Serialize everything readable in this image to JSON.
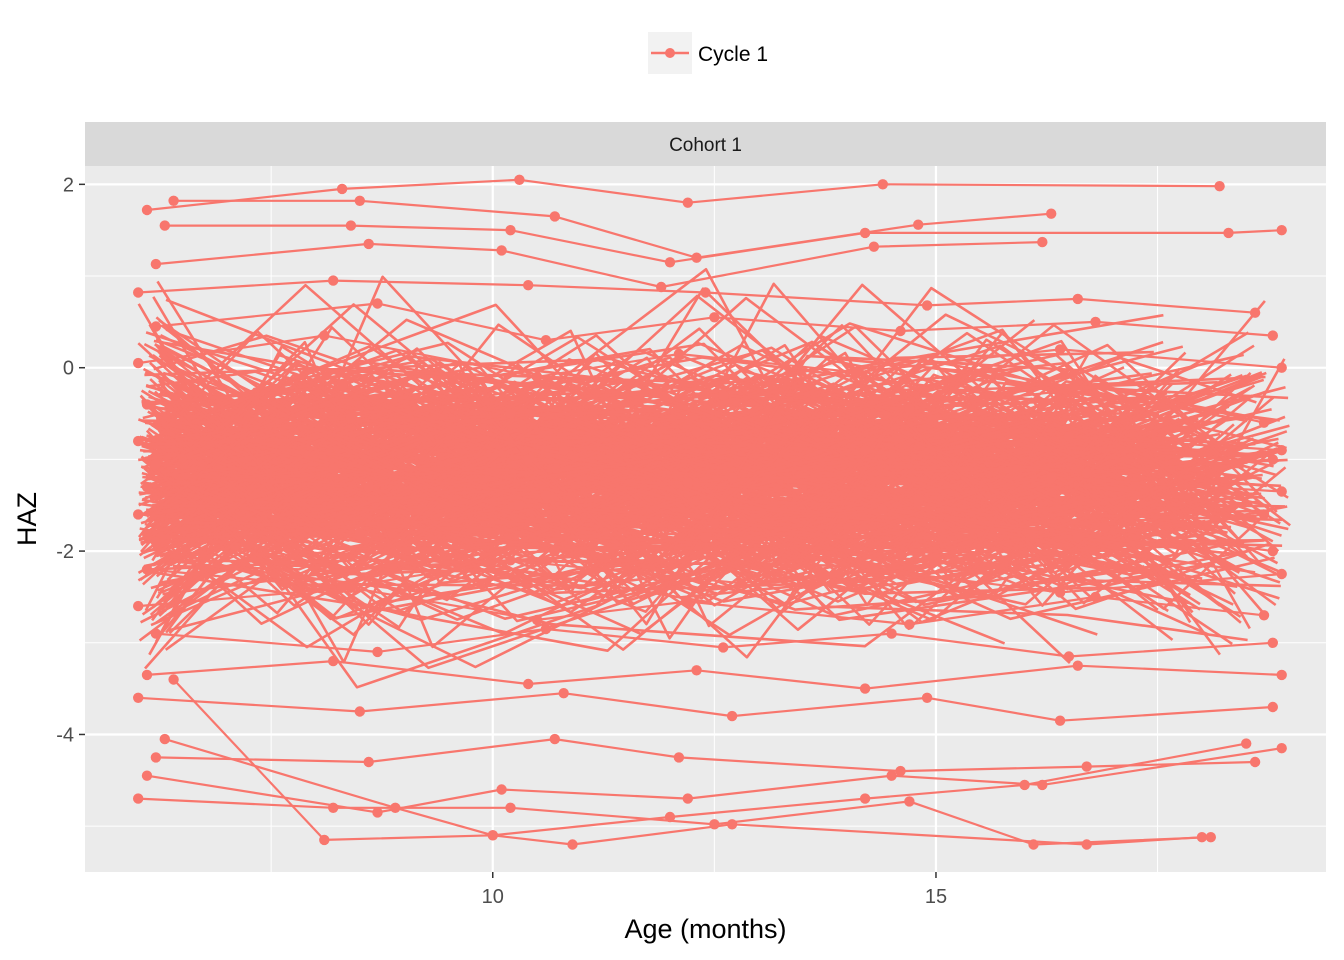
{
  "chart_data": {
    "type": "line",
    "facet_label": "Cohort 1",
    "xlabel": "Age (months)",
    "ylabel": "HAZ",
    "xlim": [
      5.4,
      19.4
    ],
    "ylim": [
      -5.5,
      2.2
    ],
    "x_ticks": [
      10,
      15
    ],
    "y_ticks": [
      2,
      0,
      -2,
      -4
    ],
    "grid": true,
    "legend_position": "top",
    "colors": {
      "series": "#F8766D",
      "panel": "#EBEBEB",
      "strip": "#D9D9D9",
      "grid": "#FFFFFF"
    },
    "series": [
      {
        "name": "Cycle 1",
        "trajectories": [
          [
            [
              6.1,
              1.72
            ],
            [
              8.3,
              1.95
            ],
            [
              10.3,
              2.05
            ],
            [
              12.2,
              1.8
            ],
            [
              14.4,
              2.0
            ],
            [
              18.2,
              1.98
            ]
          ],
          [
            [
              6.4,
              1.82
            ],
            [
              8.5,
              1.82
            ],
            [
              10.7,
              1.65
            ],
            [
              12.3,
              1.2
            ],
            [
              14.8,
              1.56
            ],
            [
              16.3,
              1.68
            ]
          ],
          [
            [
              6.3,
              1.55
            ],
            [
              8.4,
              1.55
            ],
            [
              10.2,
              1.5
            ],
            [
              12.0,
              1.15
            ],
            [
              14.2,
              1.47
            ],
            [
              18.3,
              1.47
            ],
            [
              18.9,
              1.5
            ]
          ],
          [
            [
              6.2,
              1.13
            ],
            [
              8.6,
              1.35
            ],
            [
              10.1,
              1.28
            ],
            [
              11.9,
              0.88
            ],
            [
              14.3,
              1.32
            ],
            [
              16.2,
              1.37
            ]
          ],
          [
            [
              6.0,
              0.82
            ],
            [
              8.2,
              0.95
            ],
            [
              10.4,
              0.9
            ],
            [
              12.4,
              0.82
            ],
            [
              14.9,
              0.68
            ],
            [
              16.6,
              0.75
            ],
            [
              18.6,
              0.6
            ]
          ],
          [
            [
              6.2,
              0.45
            ],
            [
              8.7,
              0.7
            ],
            [
              10.6,
              0.3
            ],
            [
              12.5,
              0.55
            ],
            [
              14.6,
              0.4
            ],
            [
              16.8,
              0.5
            ],
            [
              18.8,
              0.35
            ]
          ],
          [
            [
              6.0,
              0.05
            ],
            [
              8.1,
              0.35
            ],
            [
              10.5,
              -0.1
            ],
            [
              12.1,
              0.15
            ],
            [
              14.1,
              -0.05
            ],
            [
              16.4,
              0.2
            ],
            [
              18.9,
              0.0
            ]
          ],
          [
            [
              6.1,
              -0.4
            ],
            [
              8.3,
              -0.2
            ],
            [
              10.2,
              -0.5
            ],
            [
              12.6,
              -0.3
            ],
            [
              14.7,
              -0.45
            ],
            [
              16.9,
              -0.2
            ],
            [
              18.7,
              -0.6
            ]
          ],
          [
            [
              6.0,
              -0.8
            ],
            [
              8.4,
              -0.55
            ],
            [
              10.8,
              -0.9
            ],
            [
              12.3,
              -0.7
            ],
            [
              14.5,
              -0.95
            ],
            [
              16.5,
              -0.75
            ],
            [
              18.9,
              -0.9
            ]
          ],
          [
            [
              6.2,
              -1.05
            ],
            [
              8.6,
              -1.3
            ],
            [
              10.4,
              -1.0
            ],
            [
              12.7,
              -1.2
            ],
            [
              14.2,
              -0.9
            ],
            [
              16.7,
              -1.15
            ],
            [
              18.8,
              -1.0
            ]
          ],
          [
            [
              6.1,
              -1.3
            ],
            [
              8.2,
              -1.1
            ],
            [
              10.6,
              -1.4
            ],
            [
              12.2,
              -1.25
            ],
            [
              14.8,
              -1.45
            ],
            [
              16.3,
              -1.2
            ],
            [
              18.9,
              -1.35
            ]
          ],
          [
            [
              6.0,
              -1.6
            ],
            [
              8.5,
              -1.8
            ],
            [
              10.3,
              -1.5
            ],
            [
              12.5,
              -1.7
            ],
            [
              14.4,
              -1.55
            ],
            [
              16.6,
              -1.85
            ],
            [
              18.7,
              -1.6
            ]
          ],
          [
            [
              6.2,
              -1.9
            ],
            [
              8.8,
              -1.7
            ],
            [
              10.7,
              -2.0
            ],
            [
              12.4,
              -1.85
            ],
            [
              14.6,
              -2.05
            ],
            [
              16.9,
              -1.75
            ],
            [
              18.8,
              -2.0
            ]
          ],
          [
            [
              6.1,
              -2.2
            ],
            [
              8.3,
              -2.4
            ],
            [
              10.2,
              -2.1
            ],
            [
              12.8,
              -2.35
            ],
            [
              14.3,
              -2.2
            ],
            [
              16.4,
              -2.45
            ],
            [
              18.9,
              -2.25
            ]
          ],
          [
            [
              6.0,
              -2.6
            ],
            [
              8.4,
              -2.4
            ],
            [
              10.5,
              -2.75
            ],
            [
              12.2,
              -2.55
            ],
            [
              14.7,
              -2.8
            ],
            [
              16.8,
              -2.5
            ],
            [
              18.7,
              -2.7
            ]
          ],
          [
            [
              6.2,
              -2.9
            ],
            [
              8.7,
              -3.1
            ],
            [
              10.6,
              -2.85
            ],
            [
              12.6,
              -3.05
            ],
            [
              14.5,
              -2.9
            ],
            [
              16.5,
              -3.15
            ],
            [
              18.8,
              -3.0
            ]
          ],
          [
            [
              6.1,
              -3.35
            ],
            [
              8.2,
              -3.2
            ],
            [
              10.4,
              -3.45
            ],
            [
              12.3,
              -3.3
            ],
            [
              14.2,
              -3.5
            ],
            [
              16.6,
              -3.25
            ],
            [
              18.9,
              -3.35
            ]
          ],
          [
            [
              6.0,
              -3.6
            ],
            [
              8.5,
              -3.75
            ],
            [
              10.8,
              -3.55
            ],
            [
              12.7,
              -3.8
            ],
            [
              14.9,
              -3.6
            ],
            [
              16.4,
              -3.85
            ],
            [
              18.8,
              -3.7
            ]
          ],
          [
            [
              6.2,
              -4.25
            ],
            [
              8.6,
              -4.3
            ],
            [
              10.7,
              -4.05
            ],
            [
              12.1,
              -4.25
            ],
            [
              14.6,
              -4.4
            ],
            [
              16.7,
              -4.35
            ],
            [
              18.6,
              -4.3
            ]
          ],
          [
            [
              6.1,
              -4.45
            ],
            [
              8.7,
              -4.85
            ],
            [
              10.1,
              -4.6
            ],
            [
              12.2,
              -4.7
            ],
            [
              14.5,
              -4.45
            ],
            [
              16.2,
              -4.55
            ],
            [
              18.9,
              -4.15
            ]
          ],
          [
            [
              6.0,
              -4.7
            ],
            [
              8.2,
              -4.8
            ],
            [
              10.2,
              -4.8
            ],
            [
              12.5,
              -4.98
            ],
            [
              14.7,
              -4.73
            ],
            [
              16.1,
              -5.2
            ],
            [
              18.1,
              -5.12
            ]
          ],
          [
            [
              6.3,
              -4.05
            ],
            [
              8.9,
              -4.8
            ],
            [
              10.0,
              -5.1
            ],
            [
              10.9,
              -5.2
            ],
            [
              12.7,
              -4.98
            ],
            [
              16.7,
              -5.2
            ],
            [
              18.0,
              -5.12
            ]
          ],
          [
            [
              6.4,
              -3.4
            ],
            [
              8.1,
              -5.15
            ],
            [
              10.0,
              -5.1
            ],
            [
              12.0,
              -4.9
            ],
            [
              14.2,
              -4.7
            ],
            [
              16.0,
              -4.55
            ],
            [
              18.5,
              -4.1
            ]
          ]
        ],
        "cloud": {
          "x_range": [
            6.0,
            19.0
          ],
          "y_center": -1.2,
          "y_spread": 1.0
        }
      }
    ]
  }
}
